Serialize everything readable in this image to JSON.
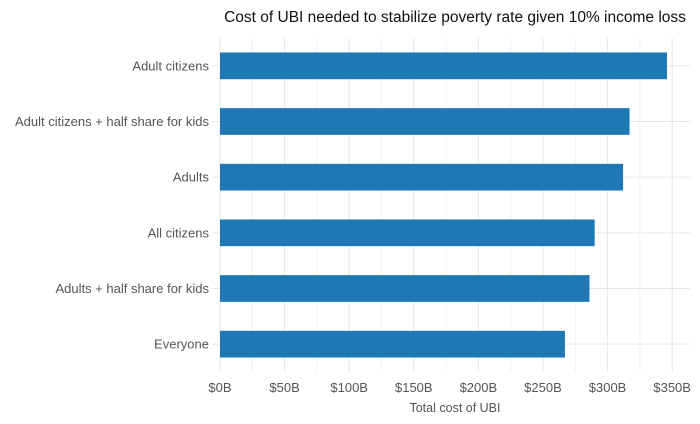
{
  "chart_data": {
    "type": "bar",
    "orientation": "horizontal",
    "title": "Cost of UBI needed to stabilize poverty rate given 10% income loss",
    "xlabel": "Total cost of UBI",
    "ylabel": "",
    "categories": [
      "Adult citizens",
      "Adult citizens + half share for kids",
      "Adults",
      "All citizens",
      "Adults + half share for kids",
      "Everyone"
    ],
    "values": [
      346,
      317,
      312,
      290,
      286,
      267
    ],
    "value_unit": "billion USD",
    "xlim": [
      0,
      360
    ],
    "x_ticks": [
      0,
      50,
      100,
      150,
      200,
      250,
      300,
      350
    ],
    "x_tick_labels": [
      "$0B",
      "$50B",
      "$100B",
      "$150B",
      "$200B",
      "$250B",
      "$300B",
      "$350B"
    ],
    "grid": true,
    "legend": "none",
    "bar_color": "#1f77b4"
  }
}
